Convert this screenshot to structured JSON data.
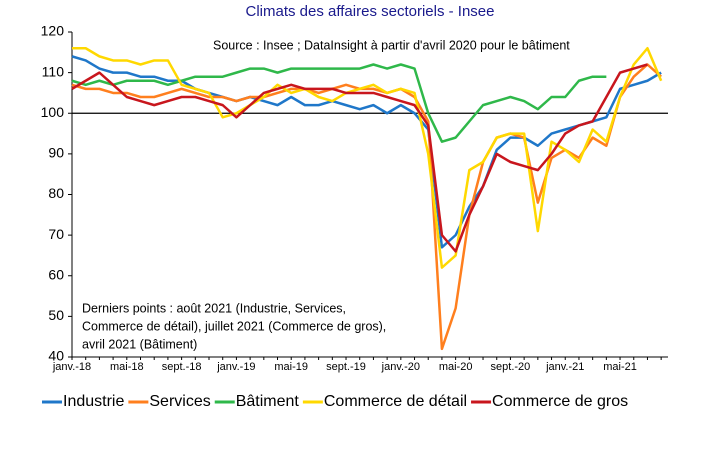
{
  "chart_data": {
    "type": "line",
    "title": "Climats des affaires sectoriels - Insee",
    "source": "Source : Insee ; DataInsight à partir d'avril 2020 pour le bâtiment",
    "annotation": [
      "Derniers points : août 2021 (Industrie, Services,",
      "Commerce de détail), juillet 2021 (Commerce de gros),",
      "avril 2021 (Bâtiment)"
    ],
    "categories": [
      "janv.-18",
      null,
      null,
      null,
      "mai-18",
      null,
      null,
      null,
      "sept.-18",
      null,
      null,
      null,
      "janv.-19",
      null,
      null,
      null,
      "mai-19",
      null,
      null,
      null,
      "sept.-19",
      null,
      null,
      null,
      "janv.-20",
      null,
      null,
      null,
      "mai-20",
      null,
      null,
      null,
      "sept.-20",
      null,
      null,
      null,
      "janv.-21",
      null,
      null,
      null,
      "mai-21",
      null,
      null,
      null
    ],
    "ylim": [
      40,
      120
    ],
    "yticks": [
      40,
      50,
      60,
      70,
      80,
      90,
      100,
      110,
      120
    ],
    "refline": 100,
    "legend": "bottom",
    "series": [
      {
        "name": "Industrie",
        "color": "#1f77c9",
        "values": [
          114,
          113,
          111,
          110,
          110,
          109,
          109,
          108,
          108,
          106,
          105,
          104,
          103,
          104,
          103,
          102,
          104,
          102,
          102,
          103,
          102,
          101,
          102,
          100,
          102,
          100,
          96,
          67,
          70,
          77,
          82,
          91,
          94,
          94,
          92,
          95,
          96,
          97,
          98,
          99,
          106,
          107,
          108,
          110
        ]
      },
      {
        "name": "Services",
        "color": "#ff7f1e",
        "values": [
          107,
          106,
          106,
          105,
          105,
          104,
          104,
          105,
          106,
          105,
          104,
          104,
          103,
          104,
          104,
          105,
          106,
          106,
          105,
          106,
          107,
          106,
          106,
          105,
          106,
          104,
          98,
          42,
          52,
          75,
          88,
          94,
          95,
          94,
          78,
          89,
          91,
          89,
          94,
          92,
          104,
          109,
          112,
          109
        ]
      },
      {
        "name": "Bâtiment",
        "color": "#2fb84a",
        "values": [
          108,
          107,
          108,
          107,
          108,
          108,
          108,
          107,
          108,
          109,
          109,
          109,
          110,
          111,
          111,
          110,
          111,
          111,
          111,
          111,
          111,
          111,
          112,
          111,
          112,
          111,
          100,
          93,
          94,
          98,
          102,
          103,
          104,
          103,
          101,
          104,
          104,
          108,
          109,
          109,
          null,
          null,
          null,
          null
        ]
      },
      {
        "name": "Commerce de détail",
        "color": "#ffd800",
        "values": [
          116,
          116,
          114,
          113,
          113,
          112,
          113,
          113,
          107,
          106,
          105,
          99,
          100,
          102,
          104,
          107,
          105,
          106,
          104,
          103,
          105,
          106,
          107,
          105,
          106,
          105,
          90,
          62,
          65,
          86,
          88,
          94,
          95,
          95,
          71,
          93,
          91,
          88,
          96,
          93,
          104,
          112,
          116,
          108
        ]
      },
      {
        "name": "Commerce de gros",
        "color": "#c8161d",
        "values": [
          106,
          108,
          110,
          107,
          104,
          103,
          102,
          103,
          104,
          104,
          103,
          102,
          99,
          102,
          105,
          106,
          107,
          106,
          106,
          106,
          105,
          105,
          105,
          104,
          103,
          102,
          97,
          70,
          66,
          75,
          82,
          90,
          88,
          87,
          86,
          90,
          95,
          97,
          98,
          104,
          110,
          111,
          112,
          null
        ]
      }
    ]
  }
}
